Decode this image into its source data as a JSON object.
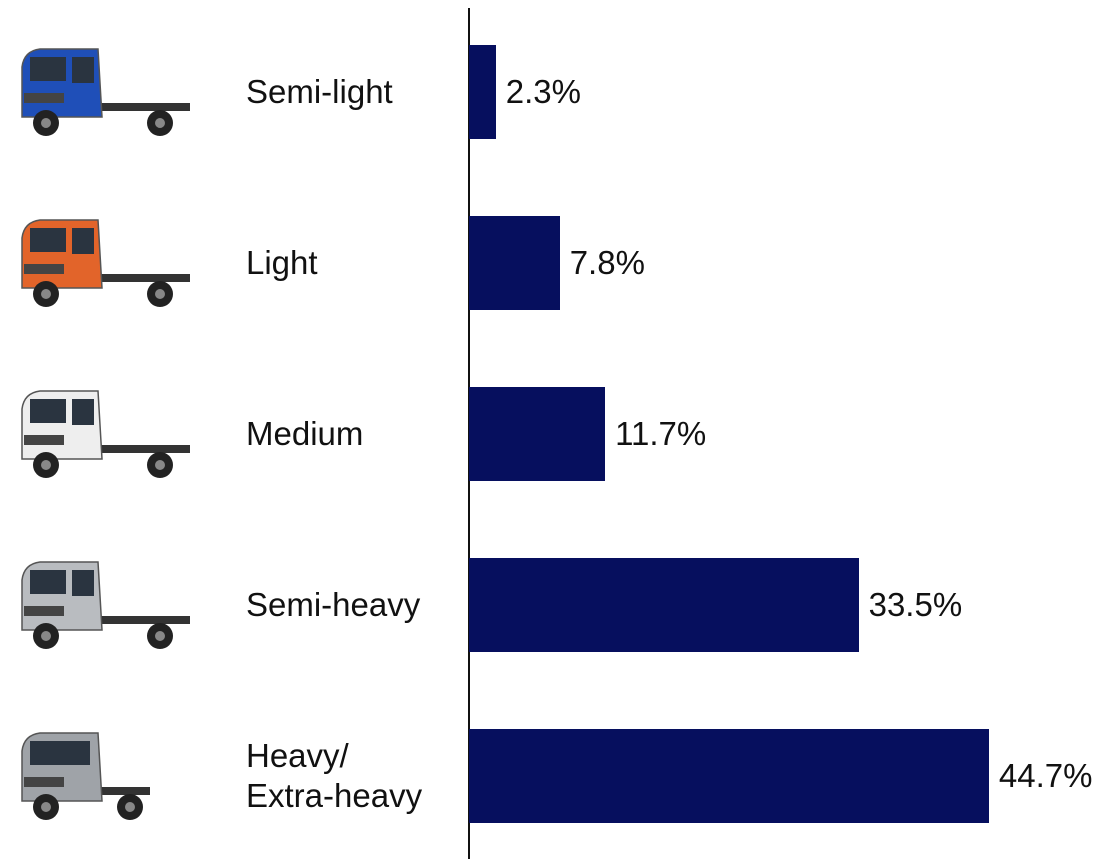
{
  "chart_data": {
    "type": "bar",
    "orientation": "horizontal",
    "categories": [
      "Semi-light",
      "Light",
      "Medium",
      "Semi-heavy",
      "Heavy/\nExtra-heavy"
    ],
    "values": [
      2.3,
      7.8,
      11.7,
      33.5,
      44.7
    ],
    "value_labels": [
      "2.3%",
      "7.8%",
      "11.7%",
      "33.5%",
      "44.7%"
    ],
    "color": "#060f5e"
  }
}
